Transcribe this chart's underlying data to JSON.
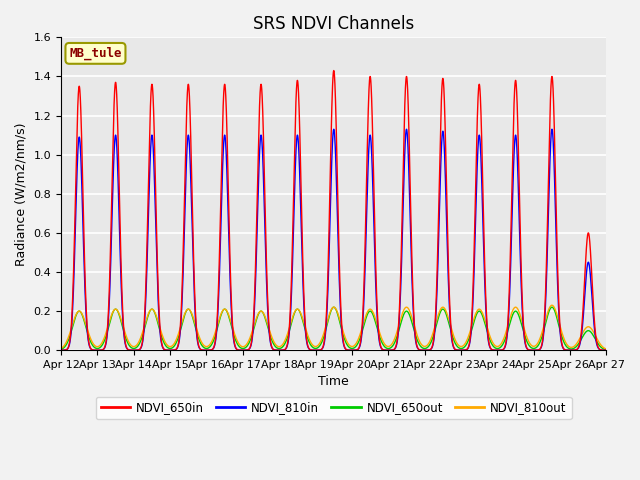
{
  "title": "SRS NDVI Channels",
  "xlabel": "Time",
  "ylabel": "Radiance (W/m2/nm/s)",
  "ylim": [
    0,
    1.6
  ],
  "site_label": "MB_tule",
  "x_tick_labels": [
    "Apr 12",
    "Apr 13",
    "Apr 14",
    "Apr 15",
    "Apr 16",
    "Apr 17",
    "Apr 18",
    "Apr 19",
    "Apr 20",
    "Apr 21",
    "Apr 22",
    "Apr 23",
    "Apr 24",
    "Apr 25",
    "Apr 26",
    "Apr 27"
  ],
  "series": {
    "NDVI_650in": {
      "color": "#ff0000"
    },
    "NDVI_810in": {
      "color": "#0000ff"
    },
    "NDVI_650out": {
      "color": "#00cc00"
    },
    "NDVI_810out": {
      "color": "#ffaa00"
    }
  },
  "peaks_650in": [
    1.35,
    1.37,
    1.36,
    1.36,
    1.36,
    1.36,
    1.38,
    1.43,
    1.4,
    1.4,
    1.39,
    1.36,
    1.38,
    1.4,
    0.6
  ],
  "peaks_810in": [
    1.09,
    1.1,
    1.1,
    1.1,
    1.1,
    1.1,
    1.1,
    1.13,
    1.1,
    1.13,
    1.12,
    1.1,
    1.1,
    1.13,
    0.45
  ],
  "peaks_650out": [
    0.2,
    0.21,
    0.21,
    0.21,
    0.21,
    0.2,
    0.21,
    0.22,
    0.2,
    0.2,
    0.21,
    0.2,
    0.2,
    0.22,
    0.1
  ],
  "peaks_810out": [
    0.2,
    0.21,
    0.21,
    0.21,
    0.21,
    0.2,
    0.21,
    0.22,
    0.21,
    0.22,
    0.22,
    0.21,
    0.22,
    0.23,
    0.12
  ],
  "background_color": "#e8e8e8",
  "plot_bg_color": "#e8e8e8",
  "grid_color": "#ffffff",
  "fig_bg_color": "#f2f2f2",
  "title_fontsize": 12,
  "label_fontsize": 9,
  "tick_fontsize": 8
}
